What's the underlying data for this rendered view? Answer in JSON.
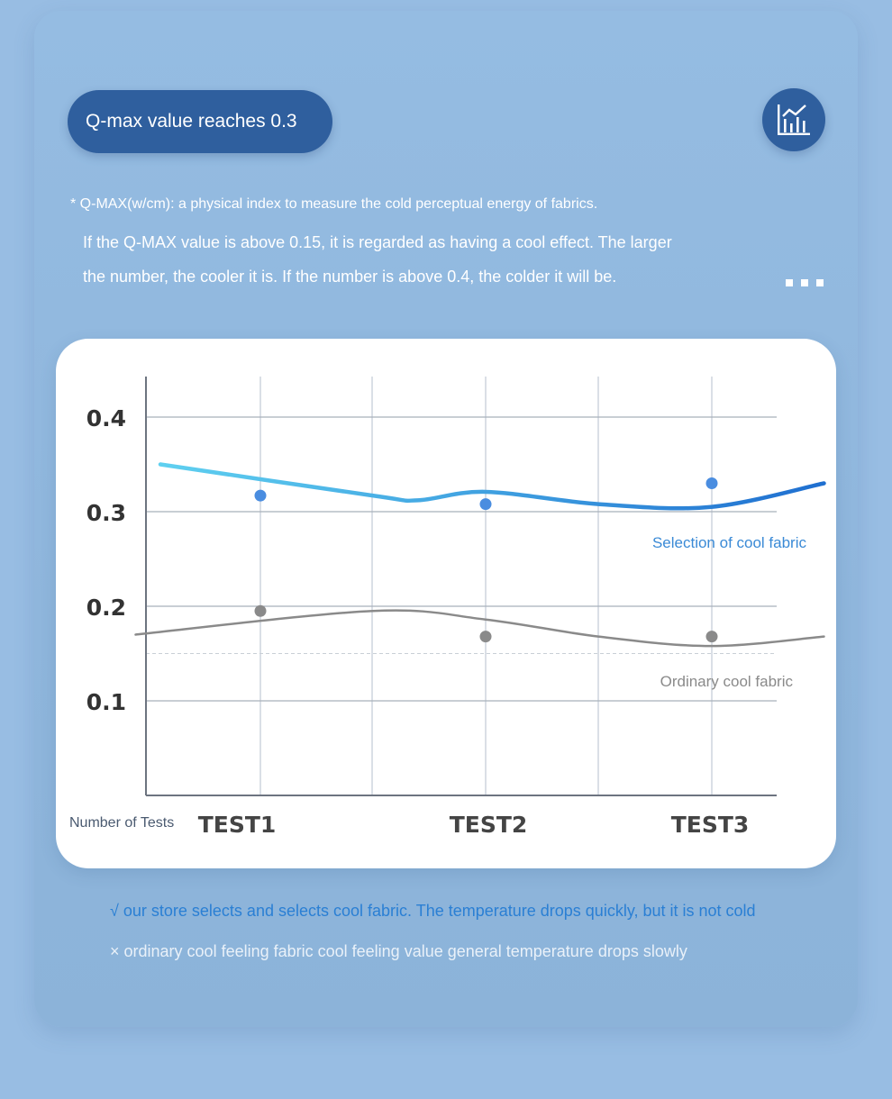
{
  "header": {
    "pill_label": "Q-max value reaches 0.3",
    "icon": "bar-chart-icon"
  },
  "notes": {
    "definition": "* Q-MAX(w/cm): a physical index to measure the cold perceptual energy of fabrics.",
    "line1": "If the Q-MAX value is above 0.15, it is regarded as having a cool effect. The larger",
    "line2": "the number, the cooler it is. If the number is above 0.4, the colder it will be."
  },
  "chart_data": {
    "type": "line",
    "categories": [
      "TEST1",
      "TEST2",
      "TEST3"
    ],
    "xlabel": "Number of Tests",
    "ylabel": "",
    "ylim": [
      0,
      0.44
    ],
    "yticks": [
      0.1,
      0.2,
      0.3,
      0.4
    ],
    "ytick_labels": [
      "0.1",
      "0.2",
      "0.3",
      "0.4"
    ],
    "reference_line": 0.15,
    "grid": true,
    "series": [
      {
        "name": "Selection of cool fabric",
        "color": "#1f6fd0",
        "color_start": "#5fd0f0",
        "values": [
          0.317,
          0.308,
          0.33
        ],
        "curve": [
          [
            0.0,
            0.35
          ],
          [
            1.0,
            0.317
          ],
          [
            1.2,
            0.312
          ],
          [
            1.5,
            0.321
          ],
          [
            2.0,
            0.308
          ],
          [
            2.5,
            0.305
          ],
          [
            3.0,
            0.33
          ]
        ]
      },
      {
        "name": "Ordinary cool fabric",
        "color": "#8a8a8a",
        "values": [
          0.195,
          0.168,
          0.168
        ],
        "curve": [
          [
            -0.05,
            0.17
          ],
          [
            1.0,
            0.195
          ],
          [
            1.5,
            0.186
          ],
          [
            2.0,
            0.168
          ],
          [
            2.5,
            0.158
          ],
          [
            3.0,
            0.168
          ]
        ]
      }
    ]
  },
  "footer": {
    "check_line": "√ our store selects and selects cool fabric. The temperature drops quickly, but it is not cold",
    "cross_line": "× ordinary cool feeling fabric cool feeling value general temperature drops slowly"
  }
}
